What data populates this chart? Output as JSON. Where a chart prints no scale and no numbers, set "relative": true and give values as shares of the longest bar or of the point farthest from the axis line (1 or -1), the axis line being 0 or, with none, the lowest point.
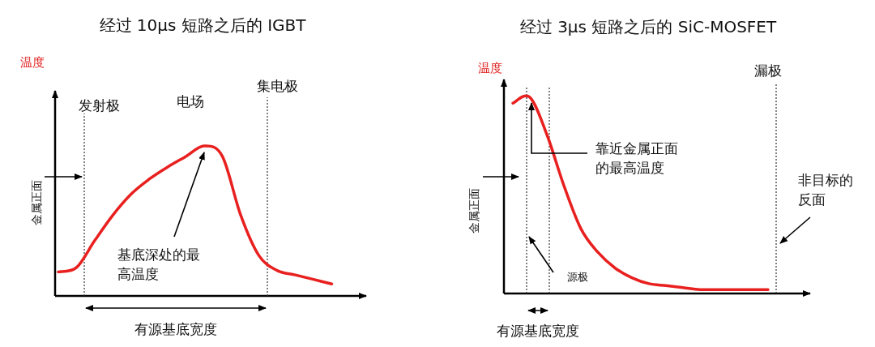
{
  "chart_data": [
    {
      "type": "line",
      "title": "经过 10μs 短路之后的 IGBT",
      "ylabel": "温度",
      "xlabel": "有源基底宽度",
      "relative": true,
      "color": "#e8201f",
      "marker": "none",
      "categories": [
        null,
        null,
        null,
        null,
        null,
        null,
        null,
        null,
        null,
        null,
        null,
        null,
        null,
        null,
        null,
        null
      ],
      "values": [
        0.16,
        0.19,
        0.37,
        0.54,
        0.68,
        0.78,
        0.86,
        0.93,
        1,
        0.93,
        0.54,
        0.27,
        0.17,
        0.14,
        0.11,
        0.08
      ],
      "annotations": [
        "发射极",
        "电场",
        "集电极",
        "基底深处的最高温度",
        "金属正面"
      ]
    },
    {
      "type": "line",
      "title": "经过 3μs 短路之后的 SiC-MOSFET",
      "ylabel": "温度",
      "xlabel": "有源基底宽度",
      "relative": true,
      "color": "#e8201f",
      "marker": "none",
      "categories": [
        null,
        null,
        null,
        null,
        null,
        null,
        null,
        null,
        null,
        null,
        null,
        null,
        null,
        null,
        null,
        null
      ],
      "values": [
        0.97,
        1,
        0.81,
        0.55,
        0.33,
        0.21,
        0.13,
        0.08,
        0.05,
        0.04,
        0.03,
        0.02,
        0.02,
        0.02,
        0.02,
        0.02
      ],
      "annotations": [
        "漏极",
        "靠近金属正面的最高温度",
        "非目标的反面",
        "源极",
        "金属正面"
      ]
    }
  ]
}
